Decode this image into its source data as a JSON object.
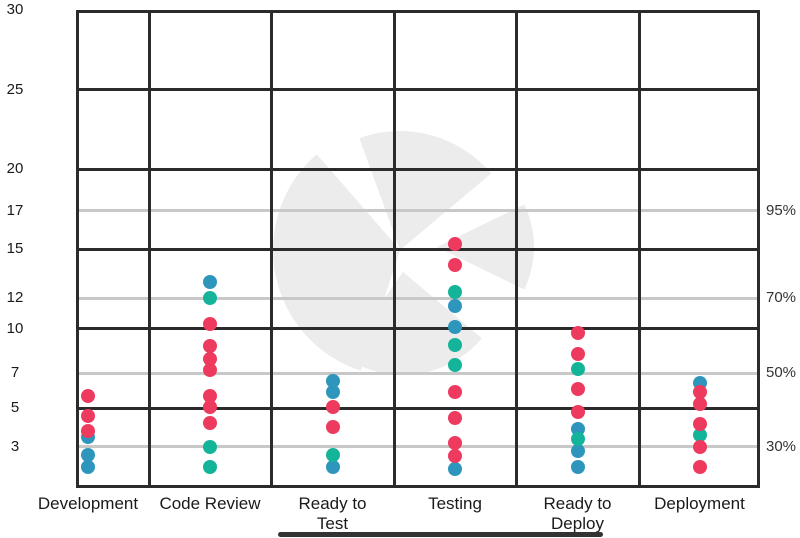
{
  "chart_data": {
    "type": "scatter",
    "categories": [
      "Development",
      "Code Review",
      "Ready to Test",
      "Testing",
      "Ready to Deploy",
      "Deployment"
    ],
    "category_label_lines": [
      [
        "Development"
      ],
      [
        "Code Review"
      ],
      [
        "Ready to",
        "Test"
      ],
      [
        "Testing"
      ],
      [
        "Ready to",
        "Deploy"
      ],
      [
        "Deployment"
      ]
    ],
    "y_axis": {
      "min": 0,
      "max": 30,
      "ticks": [
        30,
        25,
        20,
        15,
        10,
        5
      ]
    },
    "percentile_lines": [
      {
        "value": 17.4,
        "left_label": "17",
        "right_label": "95%"
      },
      {
        "value": 11.9,
        "left_label": "12",
        "right_label": "70%"
      },
      {
        "value": 7.2,
        "left_label": "7",
        "right_label": "50%"
      },
      {
        "value": 2.6,
        "left_label": "3",
        "right_label": "30%"
      }
    ],
    "stages": [
      {
        "name": "Development",
        "dots": [
          {
            "c": "red",
            "v": 5.8
          },
          {
            "c": "red",
            "v": 4.5
          },
          {
            "c": "red",
            "v": 3.6
          },
          {
            "c": "blue",
            "v": 3.2
          },
          {
            "c": "blue",
            "v": 2.1
          },
          {
            "c": "blue",
            "v": 1.3
          }
        ]
      },
      {
        "name": "Code Review",
        "dots": [
          {
            "c": "blue",
            "v": 12.9
          },
          {
            "c": "teal",
            "v": 11.9
          },
          {
            "c": "red",
            "v": 10.3
          },
          {
            "c": "red",
            "v": 8.9
          },
          {
            "c": "red",
            "v": 8.1
          },
          {
            "c": "red",
            "v": 7.4
          },
          {
            "c": "red",
            "v": 5.8
          },
          {
            "c": "red",
            "v": 5.1
          },
          {
            "c": "red",
            "v": 4.1
          },
          {
            "c": "teal",
            "v": 2.6
          },
          {
            "c": "teal",
            "v": 1.3
          }
        ]
      },
      {
        "name": "Ready to Test",
        "dots": [
          {
            "c": "blue",
            "v": 6.7
          },
          {
            "c": "blue",
            "v": 6.0
          },
          {
            "c": "red",
            "v": 5.1
          },
          {
            "c": "red",
            "v": 3.8
          },
          {
            "c": "teal",
            "v": 2.1
          },
          {
            "c": "blue",
            "v": 1.3
          }
        ]
      },
      {
        "name": "Testing",
        "dots": [
          {
            "c": "red",
            "v": 15.3
          },
          {
            "c": "red",
            "v": 14.0
          },
          {
            "c": "teal",
            "v": 12.3
          },
          {
            "c": "blue",
            "v": 11.4
          },
          {
            "c": "blue",
            "v": 10.1
          },
          {
            "c": "teal",
            "v": 9.0
          },
          {
            "c": "teal",
            "v": 7.7
          },
          {
            "c": "red",
            "v": 6.0
          },
          {
            "c": "red",
            "v": 4.4
          },
          {
            "c": "red",
            "v": 2.8
          },
          {
            "c": "red",
            "v": 2.0
          },
          {
            "c": "blue",
            "v": 1.2
          }
        ]
      },
      {
        "name": "Ready to Deploy",
        "dots": [
          {
            "c": "red",
            "v": 9.7
          },
          {
            "c": "red",
            "v": 8.4
          },
          {
            "c": "teal",
            "v": 7.5
          },
          {
            "c": "red",
            "v": 6.2
          },
          {
            "c": "red",
            "v": 4.8
          },
          {
            "c": "blue",
            "v": 3.7
          },
          {
            "c": "teal",
            "v": 3.1
          },
          {
            "c": "blue",
            "v": 2.3
          },
          {
            "c": "blue",
            "v": 1.3
          }
        ]
      },
      {
        "name": "Deployment",
        "dots": [
          {
            "c": "blue",
            "v": 6.6
          },
          {
            "c": "red",
            "v": 6.0
          },
          {
            "c": "red",
            "v": 5.3
          },
          {
            "c": "red",
            "v": 4.0
          },
          {
            "c": "teal",
            "v": 3.3
          },
          {
            "c": "red",
            "v": 2.6
          },
          {
            "c": "red",
            "v": 1.3
          }
        ]
      }
    ],
    "colors": {
      "red": "#ee3a5e",
      "teal": "#14b49a",
      "blue": "#2e96bd",
      "gridline": "#2b2b2b",
      "percentile_line": "#c8c8c8",
      "watermark": "#ececec",
      "text": "#1a1a1a"
    },
    "legend": "none",
    "grid": true
  }
}
